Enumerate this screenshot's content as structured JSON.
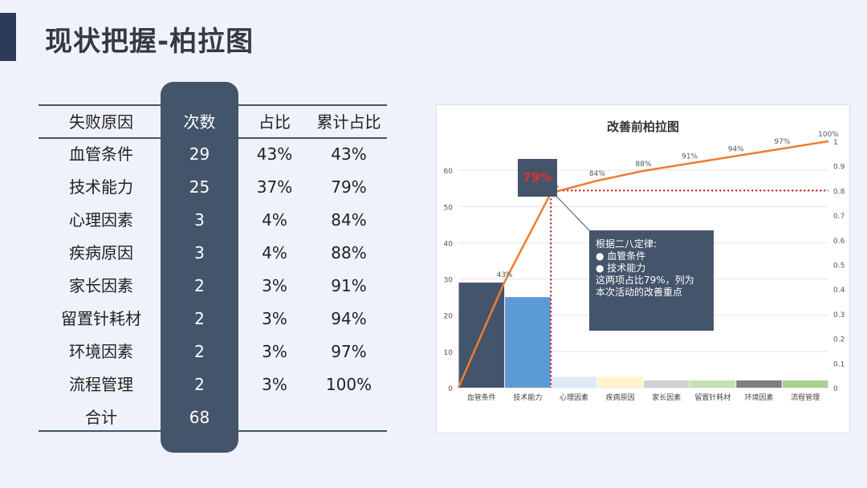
{
  "page": {
    "title": "现状把握-柏拉图"
  },
  "table": {
    "headers": [
      "失败原因",
      "次数",
      "占比",
      "累计占比"
    ],
    "rows": [
      [
        "血管条件",
        "29",
        "43%",
        "43%"
      ],
      [
        "技术能力",
        "25",
        "37%",
        "79%"
      ],
      [
        "心理因素",
        "3",
        "4%",
        "84%"
      ],
      [
        "疾病原因",
        "3",
        "4%",
        "88%"
      ],
      [
        "家长因素",
        "2",
        "3%",
        "91%"
      ],
      [
        "留置针耗材",
        "2",
        "3%",
        "94%"
      ],
      [
        "环境因素",
        "2",
        "3%",
        "97%"
      ],
      [
        "流程管理",
        "2",
        "3%",
        "100%"
      ]
    ],
    "total": [
      "合计",
      "68"
    ]
  },
  "chart_data": {
    "type": "bar",
    "title": "改善前柏拉图",
    "categories": [
      "血管条件",
      "技术能力",
      "心理因素",
      "疾病原因",
      "家长因素",
      "留置针耗材",
      "环境因素",
      "流程管理"
    ],
    "values": [
      29,
      25,
      3,
      3,
      2,
      2,
      2,
      2
    ],
    "bar_colors": [
      "#44546a",
      "#5b9bd5",
      "#deebf7",
      "#fff2cc",
      "#d0d0d0",
      "#c5e0b4",
      "#7f7f7f",
      "#a9d18e"
    ],
    "line_series": {
      "values": [
        0,
        0.43,
        0.79,
        0.84,
        0.88,
        0.91,
        0.94,
        0.97,
        1.0
      ],
      "labels": [
        "",
        "43%",
        "79%",
        "84%",
        "88%",
        "91%",
        "94%",
        "97%",
        "100%"
      ],
      "color": "#ed7d31"
    },
    "reference_value": 0.8,
    "reference_color": "#c00000",
    "y_left": {
      "ticks": [
        "0",
        "10",
        "20",
        "30",
        "40",
        "50",
        "60"
      ],
      "range": [
        0,
        68
      ]
    },
    "y_right": {
      "ticks": [
        "0",
        "0.1",
        "0.2",
        "0.3",
        "0.4",
        "0.5",
        "0.6",
        "0.7",
        "0.8",
        "0.9",
        "1"
      ],
      "range": [
        0,
        1
      ]
    },
    "grid": true,
    "highlight_label": "79%",
    "callout": {
      "lines": [
        "根据二八定律:",
        "● 血管条件",
        "● 技术能力",
        "这两项占比79%，列为",
        "本次活动的改善重点"
      ]
    }
  }
}
